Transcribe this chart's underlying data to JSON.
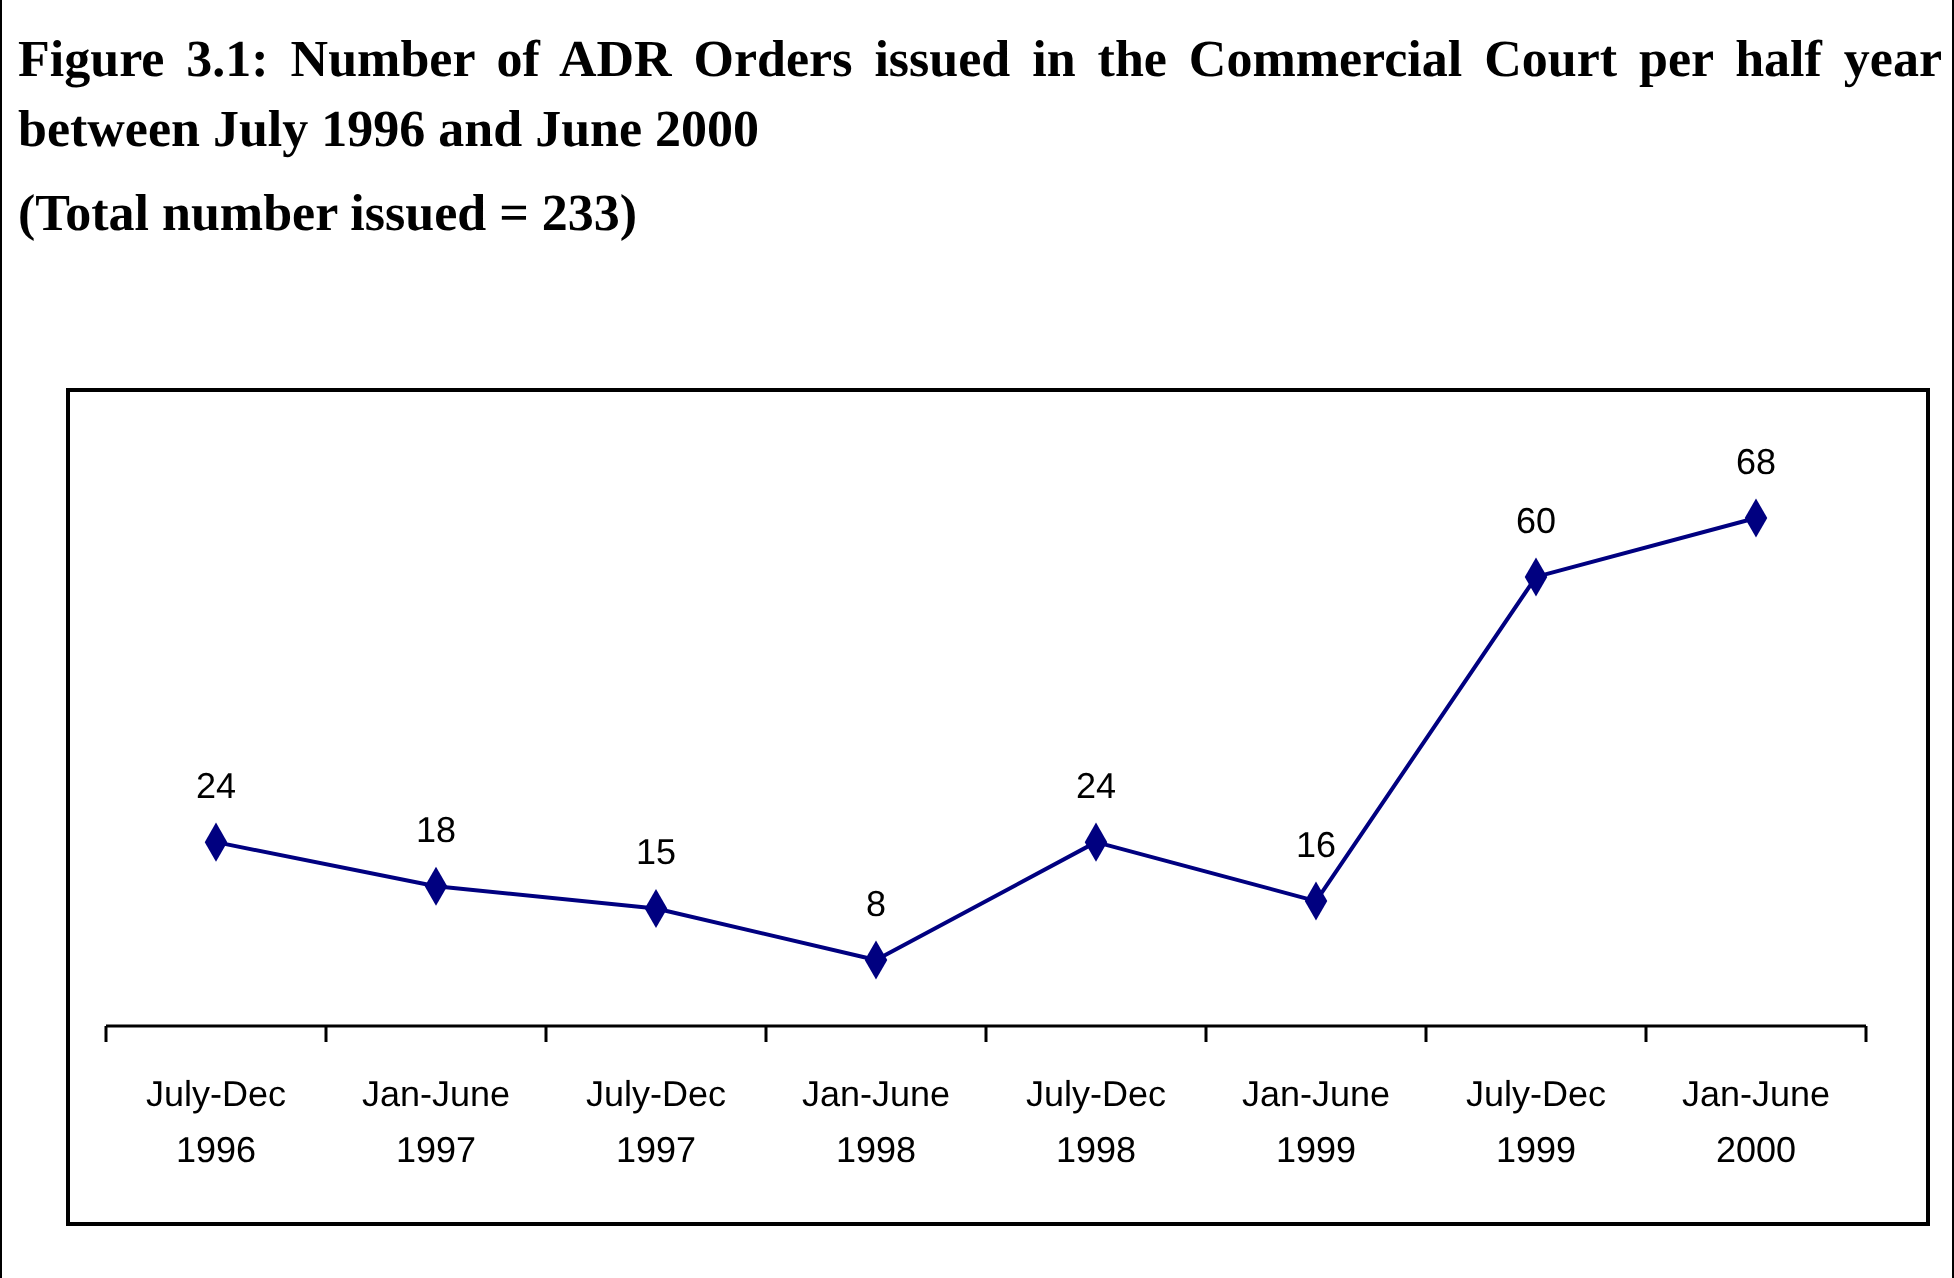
{
  "chart_data": {
    "type": "line",
    "title": "Figure 3.1: Number of ADR Orders issued in the Commercial Court per half year between July 1996 and June 2000",
    "subtitle": "(Total number issued = 233)",
    "categories": [
      "July-Dec 1996",
      "Jan-June 1997",
      "July-Dec 1997",
      "Jan-June 1998",
      "July-Dec 1998",
      "Jan-June 1999",
      "July-Dec 1999",
      "Jan-June 2000"
    ],
    "series": [
      {
        "color": "#000080",
        "values": [
          24,
          18,
          15,
          8,
          24,
          16,
          60,
          68
        ]
      }
    ],
    "tick_labels": "x",
    "data_labels": true,
    "marker": "diamond",
    "line_style": "solid"
  }
}
